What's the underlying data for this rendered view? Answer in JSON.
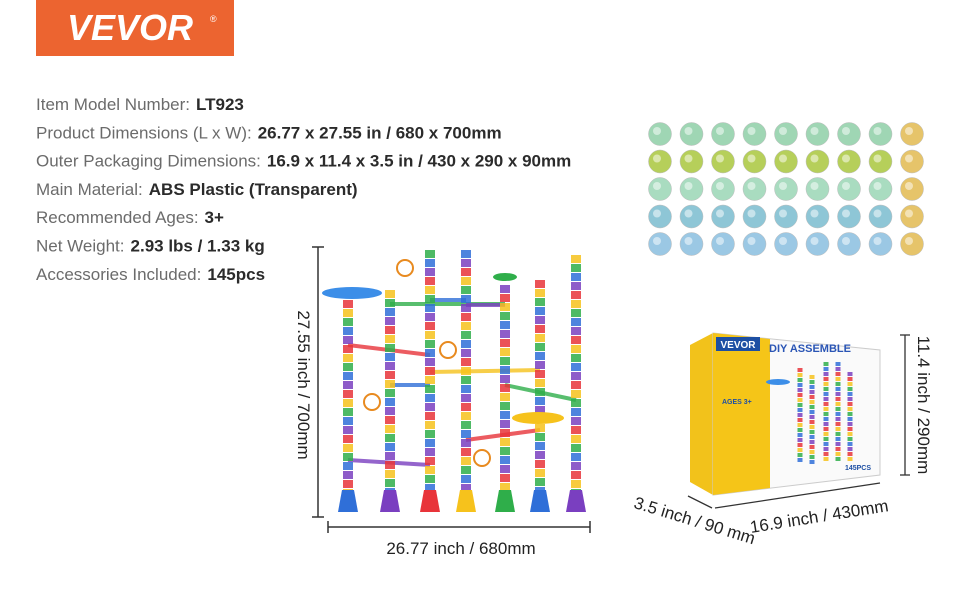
{
  "brand": "VEVOR",
  "specs": [
    {
      "label": "Item Model Number:",
      "value": "LT923"
    },
    {
      "label": "Product Dimensions (L x W):",
      "value": "26.77 x 27.55 in / 680 x 700mm"
    },
    {
      "label": "Outer Packaging Dimensions:",
      "value": "16.9 x 11.4 x 3.5 in / 430 x 290 x 90mm"
    },
    {
      "label": "Main Material:",
      "value": "ABS Plastic (Transparent)"
    },
    {
      "label": "Recommended Ages:",
      "value": "3+"
    },
    {
      "label": "Net Weight:",
      "value": "2.93 lbs / 1.33 kg"
    },
    {
      "label": "Accessories Included:",
      "value": "145pcs"
    }
  ],
  "product_dimensions": {
    "height": "27.55 inch / 700mm",
    "width": "26.77 inch / 680mm"
  },
  "box": {
    "brand": "VEVOR",
    "title": "DIY ASSEMBLE",
    "ages": "AGES 3+",
    "count": "145PCS",
    "height": "11.4 inch / 290mm",
    "width": "16.9 inch / 430mm",
    "depth": "3.5 inch / 90 mm"
  }
}
